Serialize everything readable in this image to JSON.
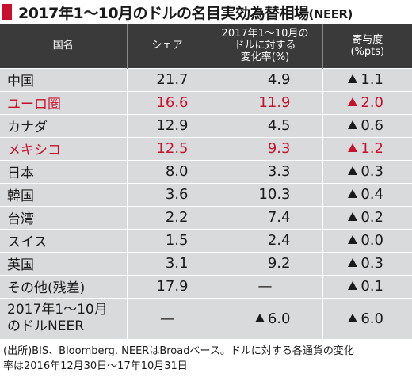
{
  "title": {
    "main": "2017年1〜10月のドルの名目実効為替相場",
    "suffix": "(NEER)"
  },
  "table": {
    "headers": {
      "country": "国名",
      "share": "シェア",
      "change_line1": "2017年1〜10月の",
      "change_line2": "ドルに対する",
      "change_line3": "変化率(%)",
      "contrib_line1": "寄与度",
      "contrib_line2": "(%pts)"
    },
    "rows": [
      {
        "name": "中国",
        "share": "21.7",
        "change": "4.9",
        "contribution": "1.1",
        "highlight": false
      },
      {
        "name": "ユーロ圏",
        "share": "16.6",
        "change": "11.9",
        "contribution": "2.0",
        "highlight": true
      },
      {
        "name": "カナダ",
        "share": "12.9",
        "change": "4.5",
        "contribution": "0.6",
        "highlight": false
      },
      {
        "name": "メキシコ",
        "share": "12.5",
        "change": "9.3",
        "contribution": "1.2",
        "highlight": true
      },
      {
        "name": "日本",
        "share": "8.0",
        "change": "3.3",
        "contribution": "0.3",
        "highlight": false
      },
      {
        "name": "韓国",
        "share": "3.6",
        "change": "10.3",
        "contribution": "0.4",
        "highlight": false
      },
      {
        "name": "台湾",
        "share": "2.2",
        "change": "7.4",
        "contribution": "0.2",
        "highlight": false
      },
      {
        "name": "スイス",
        "share": "1.5",
        "change": "2.4",
        "contribution": "0.0",
        "highlight": false
      },
      {
        "name": "英国",
        "share": "3.1",
        "change": "9.2",
        "contribution": "0.3",
        "highlight": false
      },
      {
        "name": "その他(残差)",
        "share": "17.9",
        "change": "—",
        "contribution": "0.1",
        "highlight": false
      }
    ],
    "total": {
      "name_line1": "2017年1〜10月",
      "name_line2": "のドルNEER",
      "share": "—",
      "change": "6.0",
      "contribution": "6.0"
    }
  },
  "footnote": {
    "line1": "(出所)BIS、Bloomberg. NEERはBroadベース。ドルに対する各通貨の変化",
    "line2": "率は2016年12月30日〜17年10月31日"
  },
  "colors": {
    "accent_red": "#c8102e",
    "header_bg": "#3a3a3a",
    "row_bg": "#d9dadb"
  }
}
